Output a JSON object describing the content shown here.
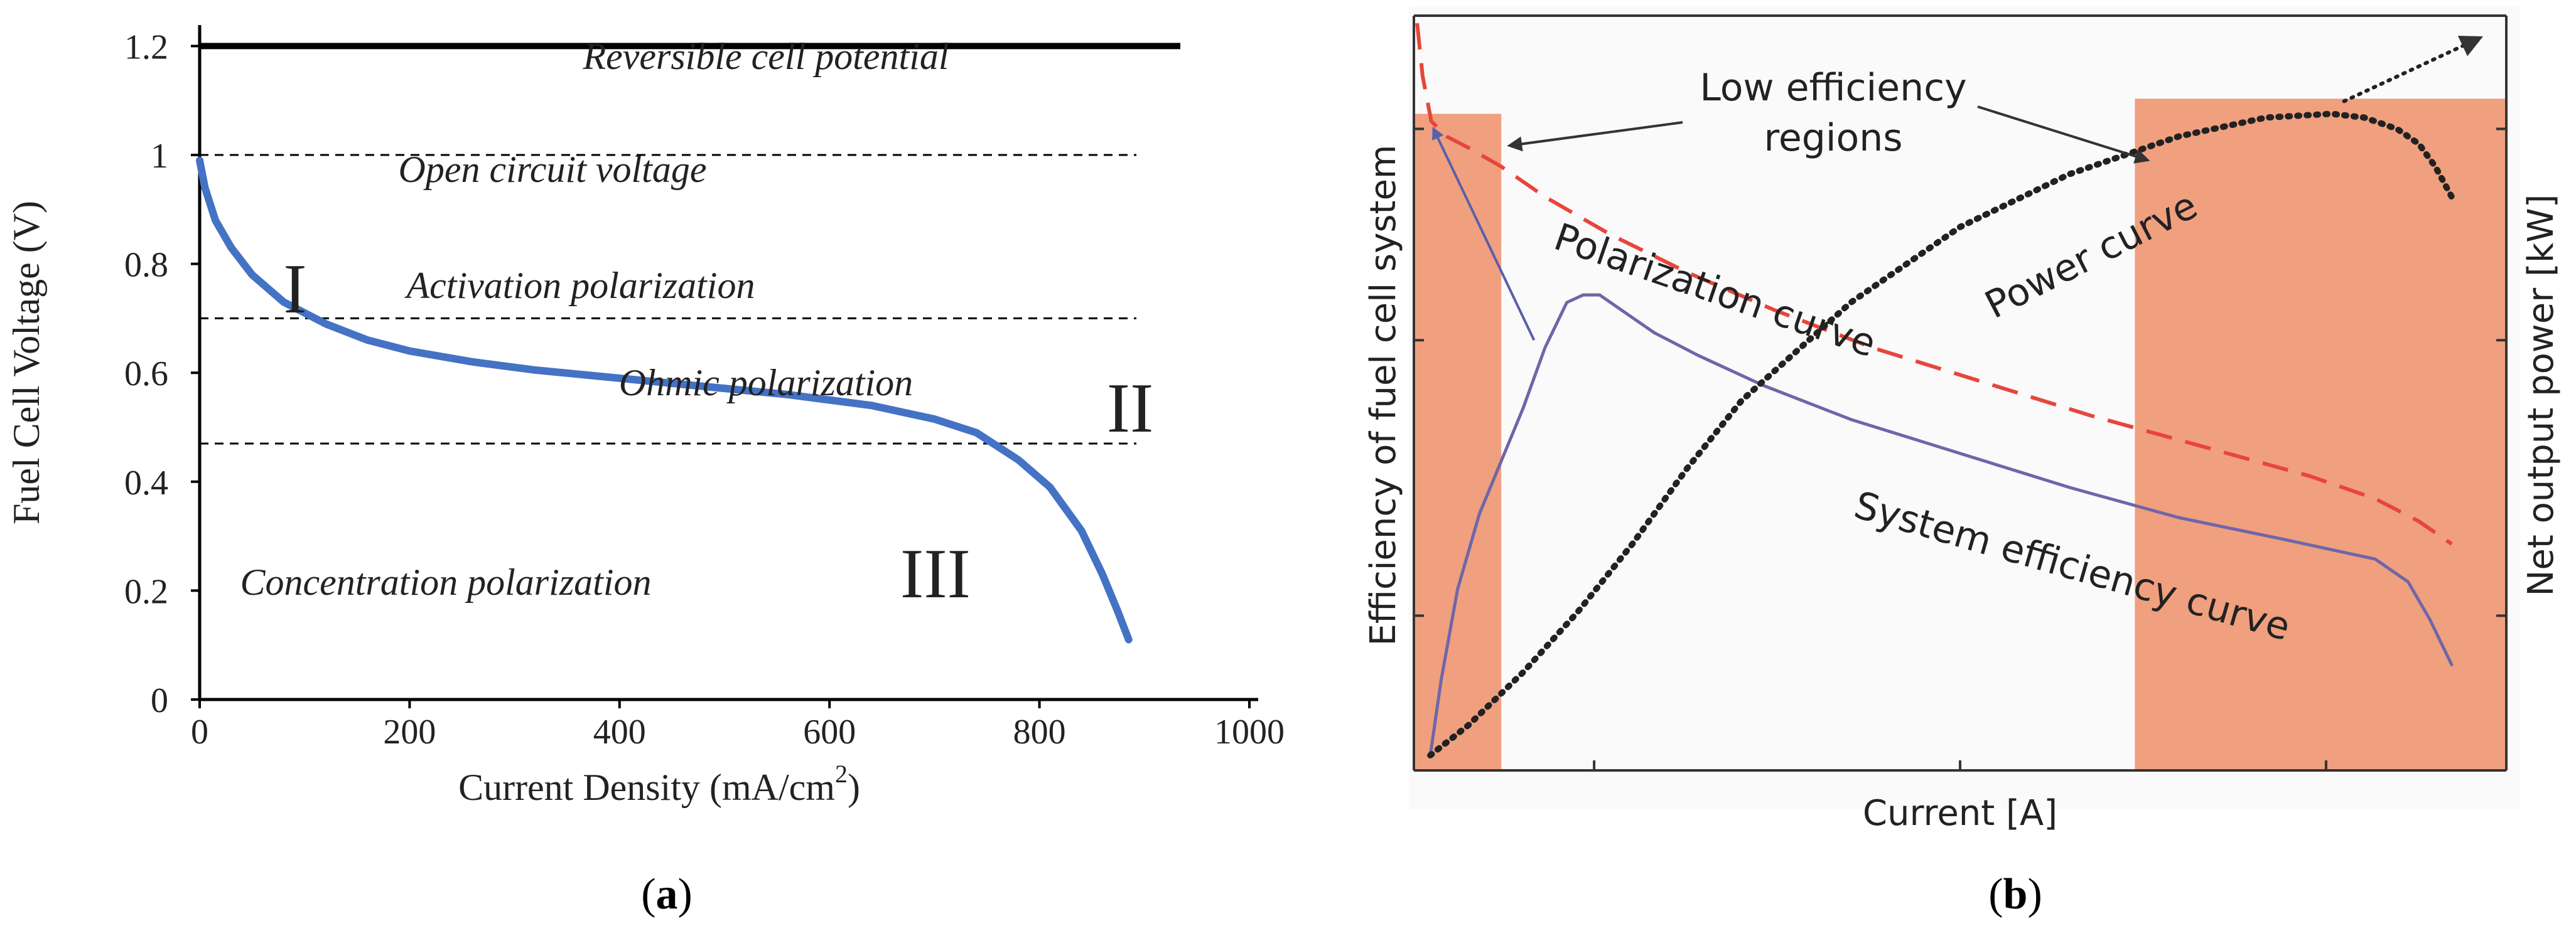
{
  "chart_data": [
    {
      "id": "a",
      "panel_label": "(a)",
      "type": "line",
      "xlabel": "Current Density (mA/cm",
      "xlabel_sup": "2",
      "xlabel_close": ")",
      "ylabel": "Fuel Cell Voltage (V)",
      "xlim": [
        0,
        1000
      ],
      "ylim": [
        0,
        1.25
      ],
      "x_ticks": [
        0,
        200,
        400,
        600,
        800,
        1000
      ],
      "x_tick_labels": [
        "0",
        "200",
        "400",
        "600",
        "800",
        "1000"
      ],
      "y_ticks": [
        0,
        0.2,
        0.4,
        0.6,
        0.8,
        1,
        1.2
      ],
      "y_tick_labels": [
        "0",
        "0.2",
        "0.4",
        "0.6",
        "0.8",
        "1",
        "1.2"
      ],
      "reference_lines": [
        {
          "y": 1.2,
          "style": "solid"
        },
        {
          "y": 1.0,
          "style": "dashed"
        },
        {
          "y": 0.7,
          "style": "dashed"
        },
        {
          "y": 0.47,
          "style": "dashed"
        }
      ],
      "region_labels": {
        "reversible": "Reversible cell potential",
        "open_circuit": "Open circuit voltage",
        "activation": "Activation polarization",
        "ohmic": "Ohmic polarization",
        "concentration": "Concentration polarization"
      },
      "roman_labels": [
        "I",
        "II",
        "III"
      ],
      "series": [
        {
          "name": "Polarization curve",
          "color": "#4472c4",
          "x": [
            0,
            5,
            15,
            30,
            50,
            80,
            120,
            160,
            200,
            260,
            320,
            400,
            480,
            560,
            640,
            700,
            740,
            780,
            810,
            840,
            860,
            875,
            885
          ],
          "y": [
            0.99,
            0.94,
            0.88,
            0.83,
            0.78,
            0.73,
            0.69,
            0.66,
            0.64,
            0.62,
            0.605,
            0.59,
            0.575,
            0.56,
            0.54,
            0.515,
            0.49,
            0.44,
            0.39,
            0.31,
            0.23,
            0.16,
            0.11
          ]
        }
      ]
    },
    {
      "id": "b",
      "panel_label": "(b)",
      "type": "line",
      "xlabel": "Current [A]",
      "ylabel_left": "Efficiency of fuel cell system",
      "ylabel_right": "Net output power [kW]",
      "annotation": [
        "Low efficiency",
        "regions"
      ],
      "curve_labels": {
        "polarization": "Polarization curve",
        "power": "Power curve",
        "system": "System efficiency curve"
      },
      "colors": {
        "region_fill": "#f0a07f",
        "polarization": "#e8453c",
        "system": "#6f66a8",
        "power": "#222222",
        "arrow": "#5a5fa8"
      },
      "xlim": [
        0,
        100
      ],
      "ylim": [
        0,
        100
      ],
      "low_efficiency_regions": [
        {
          "x0": 0,
          "x1": 8,
          "y_top": 87
        },
        {
          "x0": 66,
          "x1": 100,
          "y_top": 89
        }
      ],
      "series": [
        {
          "name": "Polarization curve",
          "style": "dashed",
          "x": [
            0.3,
            0.8,
            1.6,
            3,
            5,
            8,
            12,
            18,
            25,
            33,
            42,
            52,
            62,
            72,
            82,
            88,
            92,
            95
          ],
          "y": [
            99,
            92,
            86,
            84,
            82.5,
            80,
            76,
            71,
            66,
            61,
            56,
            51.5,
            47,
            43,
            39,
            36,
            33,
            30
          ]
        },
        {
          "name": "System efficiency curve",
          "style": "solid",
          "x": [
            1.5,
            2.5,
            4,
            6,
            8,
            10,
            12,
            14,
            15.5,
            17,
            19,
            22,
            26,
            32,
            40,
            50,
            60,
            70,
            80,
            88,
            91,
            93,
            95
          ],
          "y": [
            2,
            12,
            24,
            34,
            41,
            48,
            56,
            62,
            63,
            63,
            61,
            58,
            55,
            51,
            46.5,
            42,
            37.5,
            33.5,
            30.5,
            28,
            25,
            20,
            14
          ]
        },
        {
          "name": "Power curve",
          "style": "dotted",
          "x": [
            1.5,
            5,
            10,
            15,
            20,
            25,
            30,
            40,
            50,
            60,
            70,
            78,
            84,
            87,
            90,
            92,
            93.5,
            95
          ],
          "y": [
            2,
            6,
            13,
            21,
            30,
            40,
            49,
            62,
            72,
            79,
            84,
            86.5,
            87,
            86.5,
            85,
            83,
            80,
            76
          ]
        }
      ],
      "arrow_targets": [
        {
          "from": [
            11,
            57
          ],
          "to": [
            1.8,
            85
          ]
        }
      ]
    }
  ]
}
